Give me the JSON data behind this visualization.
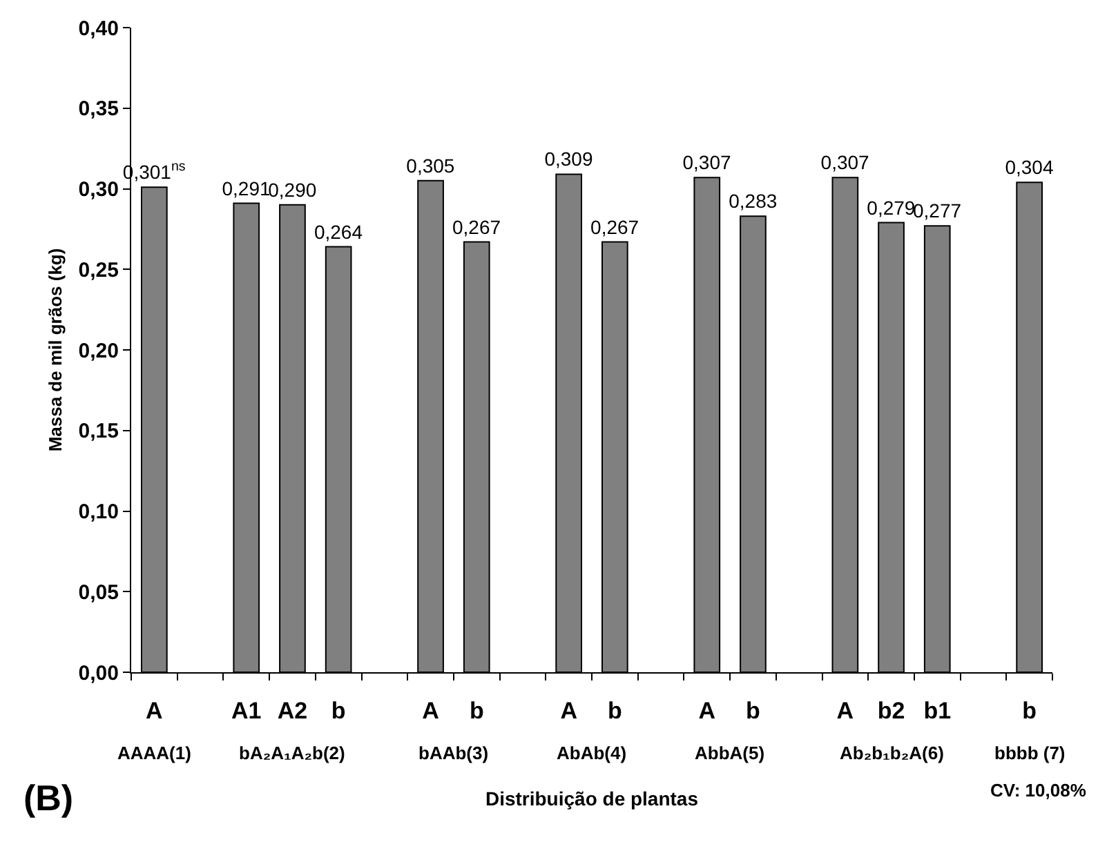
{
  "chart_data": {
    "type": "bar",
    "xlabel": "Distribuição de plantas",
    "ylabel": "Massa de mil grãos (kg)",
    "categories": [
      "A",
      null,
      "A1",
      "A2",
      "b",
      null,
      "A",
      "b",
      null,
      "A",
      "b",
      null,
      "A",
      "b",
      null,
      "A",
      "b2",
      "b1",
      null,
      "b"
    ],
    "values": [
      0.301,
      null,
      0.291,
      0.29,
      0.264,
      null,
      0.305,
      0.267,
      null,
      0.309,
      0.267,
      null,
      0.307,
      0.283,
      null,
      0.307,
      0.279,
      0.277,
      null,
      0.304
    ],
    "value_labels": [
      "0,301$^{ns}$",
      null,
      "0,291",
      "0,290",
      "0,264",
      null,
      "0,305",
      "0,267",
      null,
      "0,309",
      "0,267",
      null,
      "0,307",
      "0,283",
      null,
      "0,307",
      "0,279",
      "0,277",
      null,
      "0,304"
    ],
    "color": "#808080",
    "ylim": [
      0,
      0.4
    ],
    "yticks": [
      {
        "value": 0,
        "label": "0,00"
      },
      {
        "value": 0.05,
        "label": "0,05"
      },
      {
        "value": 0.1,
        "label": "0,10"
      },
      {
        "value": 0.15,
        "label": "0,15"
      },
      {
        "value": 0.2,
        "label": "0,20"
      },
      {
        "value": 0.25,
        "label": "0,25"
      },
      {
        "value": 0.3,
        "label": "0,30"
      },
      {
        "value": 0.35,
        "label": "0,35"
      },
      {
        "value": 0.4,
        "label": "0,40"
      }
    ],
    "grid": false,
    "annotations": [
      "AAAA(1)",
      "bA₂A₁A₂b(2)",
      "bAAb(3)",
      "AbAb(4)",
      "AbbA(5)",
      "Ab₂b₁b₂A(6)",
      "bbbb (7)",
      "(B)",
      "CV: 10,08%"
    ]
  }
}
